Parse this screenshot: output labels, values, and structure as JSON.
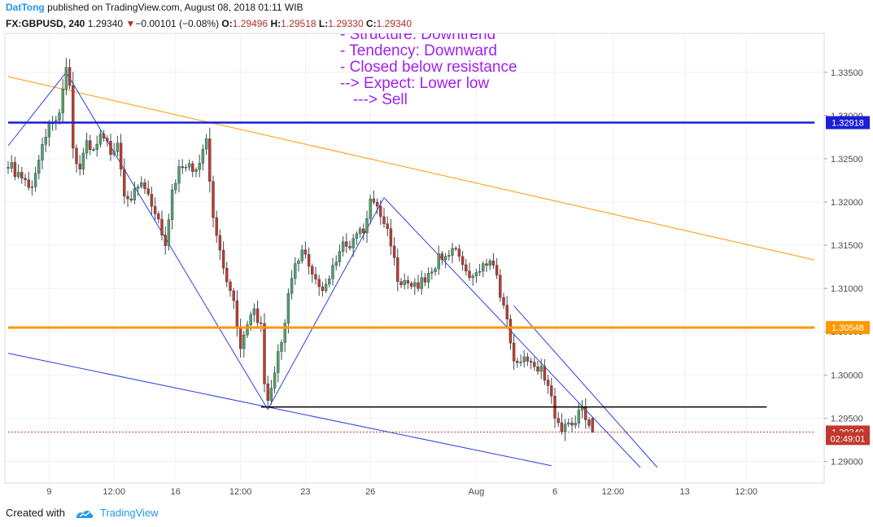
{
  "header": {
    "author": "DatTong",
    "published_text": " published on TradingView.com, August 08, 2018 01:11 WIB",
    "symbol": "FX:GBPUSD, 240",
    "last_price": "1.29340",
    "change_arrow": "▼",
    "change": "−0.00101 (−0.08%)",
    "o_label": "O:",
    "o_value": "1.29496",
    "h_label": "H:",
    "h_value": "1.29518",
    "l_label": "L:",
    "l_value": "1.29330",
    "c_label": "C:",
    "c_value": "1.29340"
  },
  "annotations": [
    "- Structure: Downtrend",
    "- Tendency: Downward",
    "- Closed below resistance",
    "--> Expect: Lower low",
    "   ---> Sell"
  ],
  "footer": {
    "created_with": "Created with",
    "brand": "TradingView"
  },
  "colors": {
    "up": "#53a068",
    "down": "#c0392b",
    "blue": "#1a1fd6",
    "orange": "#ff9800",
    "trend": "#2d3fe0",
    "text_purple": "#a020f0",
    "axis_text": "#4a4a4a"
  },
  "chart_data": {
    "type": "candlestick",
    "symbol": "FX:GBPUSD",
    "timeframe": "240",
    "ylim": [
      1.2875,
      1.3395
    ],
    "y_ticks": [
      "1.33500",
      "1.33000",
      "1.32500",
      "1.32000",
      "1.31500",
      "1.31000",
      "1.30500",
      "1.30000",
      "1.29500",
      "1.29000"
    ],
    "x_ticks": [
      {
        "label": "9",
        "bar": 12
      },
      {
        "label": "12:00",
        "bar": 31
      },
      {
        "label": "16",
        "bar": 49
      },
      {
        "label": "12:00",
        "bar": 68
      },
      {
        "label": "23",
        "bar": 87
      },
      {
        "label": "26",
        "bar": 106
      },
      {
        "label": "Aug",
        "bar": 137
      },
      {
        "label": "6",
        "bar": 160
      },
      {
        "label": "12:00",
        "bar": 177
      },
      {
        "label": "13",
        "bar": 198
      },
      {
        "label": "12:00",
        "bar": 216
      }
    ],
    "price_labels": [
      {
        "value": "1.32918",
        "price": 1.32918,
        "color": "#1a1fd6"
      },
      {
        "value": "1.30548",
        "price": 1.30548,
        "color": "#ff9800"
      },
      {
        "value": "1.29340",
        "price": 1.2934,
        "color": "#c0392b"
      },
      {
        "value": "02:49:01",
        "price": 1.29265,
        "color": "#c0392b"
      }
    ],
    "hlines": [
      {
        "price": 1.32918,
        "color": "#1a1fd6",
        "width": 2.5,
        "from_bar": 0,
        "to_bar": 236
      },
      {
        "price": 1.30548,
        "color": "#ff9800",
        "width": 3,
        "from_bar": 0,
        "to_bar": 236
      },
      {
        "price": 1.2963,
        "color": "#000000",
        "width": 1.5,
        "from_bar": 74,
        "to_bar": 222
      },
      {
        "price": 1.2934,
        "color": "#c0392b",
        "width": 1,
        "dash": true,
        "from_bar": 0,
        "to_bar": 236
      }
    ],
    "trendlines": [
      {
        "from": [
          0,
          1.3345
        ],
        "to": [
          236,
          1.3133
        ],
        "color": "#ff9800",
        "width": 1
      },
      {
        "from": [
          0,
          1.3025
        ],
        "to": [
          159,
          1.2895
        ],
        "color": "#2d3fe0",
        "width": 1
      },
      {
        "from": [
          0,
          1.3265
        ],
        "to": [
          17,
          1.335
        ],
        "color": "#2d3fe0",
        "width": 1
      },
      {
        "from": [
          17,
          1.335
        ],
        "to": [
          76,
          1.296
        ],
        "color": "#2d3fe0",
        "width": 1
      },
      {
        "from": [
          76,
          1.296
        ],
        "to": [
          110,
          1.3205
        ],
        "color": "#2d3fe0",
        "width": 1
      },
      {
        "from": [
          110,
          1.3205
        ],
        "to": [
          185,
          1.2893
        ],
        "color": "#2d3fe0",
        "width": 1
      },
      {
        "from": [
          148,
          1.308
        ],
        "to": [
          190,
          1.2893
        ],
        "color": "#2d3fe0",
        "width": 1
      }
    ],
    "waypoints": [
      [
        0,
        1.3245
      ],
      [
        3,
        1.323
      ],
      [
        6,
        1.3215
      ],
      [
        8,
        1.323
      ],
      [
        10,
        1.327
      ],
      [
        13,
        1.3295
      ],
      [
        15,
        1.33
      ],
      [
        17,
        1.335
      ],
      [
        18,
        1.333
      ],
      [
        19,
        1.326
      ],
      [
        21,
        1.324
      ],
      [
        23,
        1.327
      ],
      [
        25,
        1.326
      ],
      [
        27,
        1.3275
      ],
      [
        30,
        1.326
      ],
      [
        32,
        1.3265
      ],
      [
        34,
        1.321
      ],
      [
        36,
        1.3205
      ],
      [
        38,
        1.322
      ],
      [
        40,
        1.3215
      ],
      [
        42,
        1.3195
      ],
      [
        44,
        1.3175
      ],
      [
        46,
        1.3155
      ],
      [
        48,
        1.321
      ],
      [
        50,
        1.324
      ],
      [
        52,
        1.3245
      ],
      [
        54,
        1.3235
      ],
      [
        56,
        1.3245
      ],
      [
        58,
        1.327
      ],
      [
        60,
        1.318
      ],
      [
        62,
        1.3145
      ],
      [
        64,
        1.311
      ],
      [
        66,
        1.3085
      ],
      [
        68,
        1.3035
      ],
      [
        70,
        1.3055
      ],
      [
        72,
        1.3075
      ],
      [
        74,
        1.3055
      ],
      [
        75,
        1.2985
      ],
      [
        76,
        1.2965
      ],
      [
        78,
        1.3005
      ],
      [
        80,
        1.304
      ],
      [
        82,
        1.309
      ],
      [
        84,
        1.3125
      ],
      [
        86,
        1.314
      ],
      [
        88,
        1.313
      ],
      [
        90,
        1.311
      ],
      [
        92,
        1.3095
      ],
      [
        94,
        1.3115
      ],
      [
        96,
        1.3135
      ],
      [
        98,
        1.315
      ],
      [
        100,
        1.3145
      ],
      [
        102,
        1.3165
      ],
      [
        104,
        1.3165
      ],
      [
        106,
        1.32
      ],
      [
        108,
        1.3195
      ],
      [
        110,
        1.3175
      ],
      [
        112,
        1.3155
      ],
      [
        114,
        1.311
      ],
      [
        116,
        1.3105
      ],
      [
        118,
        1.31
      ],
      [
        120,
        1.3105
      ],
      [
        122,
        1.311
      ],
      [
        124,
        1.312
      ],
      [
        126,
        1.3135
      ],
      [
        128,
        1.314
      ],
      [
        130,
        1.3145
      ],
      [
        132,
        1.3135
      ],
      [
        134,
        1.3115
      ],
      [
        136,
        1.311
      ],
      [
        138,
        1.3125
      ],
      [
        140,
        1.313
      ],
      [
        142,
        1.3125
      ],
      [
        144,
        1.3095
      ],
      [
        146,
        1.306
      ],
      [
        148,
        1.302
      ],
      [
        150,
        1.3015
      ],
      [
        152,
        1.302
      ],
      [
        154,
        1.3015
      ],
      [
        156,
        1.3005
      ],
      [
        158,
        1.299
      ],
      [
        160,
        1.2955
      ],
      [
        162,
        1.2935
      ],
      [
        164,
        1.2945
      ],
      [
        166,
        1.295
      ],
      [
        168,
        1.296
      ],
      [
        170,
        1.2945
      ],
      [
        171,
        1.2934
      ]
    ],
    "last_price": 1.2934
  }
}
